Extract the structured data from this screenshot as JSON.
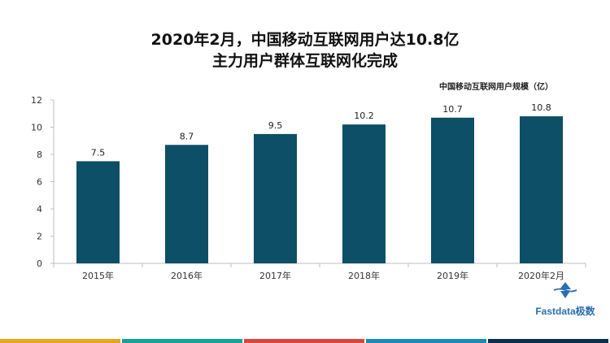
{
  "title_line1": "2020年2月，中国移动互联网用户达10.8亿",
  "title_line2": "主力用户群体互联网化完成",
  "legend_label": "中国移动互联网用户规模（亿）",
  "logo_text": "Fastdata极数",
  "colors": {
    "bar": "#0c4f66",
    "axis": "#bfbfbf",
    "stripes": [
      "#e8a31f",
      "#1aa095",
      "#d9473a",
      "#1a8ab8",
      "#0d2f4a"
    ]
  },
  "chart_data": {
    "type": "bar",
    "categories": [
      "2015年",
      "2016年",
      "2017年",
      "2018年",
      "2019年",
      "2020年2月"
    ],
    "values": [
      7.5,
      8.7,
      9.5,
      10.2,
      10.7,
      10.8
    ],
    "data_labels": [
      "7.5",
      "8.7",
      "9.5",
      "10.2",
      "10.7",
      "10.8"
    ],
    "yticks": [
      0,
      2,
      4,
      6,
      8,
      10,
      12
    ],
    "ylim": [
      0,
      12
    ],
    "title": "2020年2月，中国移动互联网用户达10.8亿 主力用户群体互联网化完成",
    "xlabel": "",
    "ylabel": "",
    "legend": "中国移动互联网用户规模（亿）",
    "grid": false
  }
}
